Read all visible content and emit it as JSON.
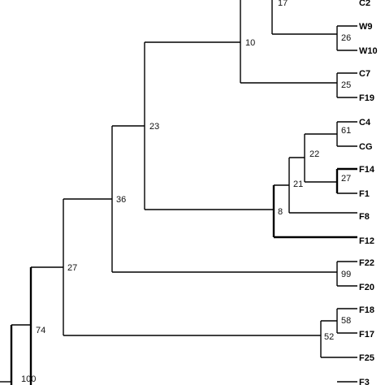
{
  "tree": {
    "tips": [
      "C2",
      "W9",
      "W10",
      "C7",
      "F19",
      "C4",
      "CG",
      "F14",
      "F1",
      "F8",
      "F12",
      "F22",
      "F20",
      "F18",
      "F17",
      "F25",
      "F3"
    ],
    "support_values": [
      "17",
      "26",
      "10",
      "25",
      "23",
      "61",
      "22",
      "27",
      "21",
      "8",
      "36",
      "99",
      "27",
      "58",
      "52",
      "74",
      "100"
    ]
  }
}
